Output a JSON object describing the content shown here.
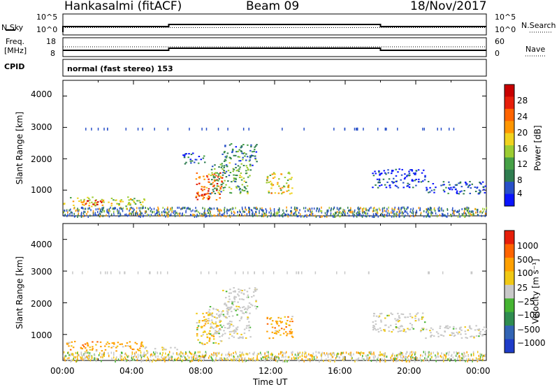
{
  "header": {
    "station": "Hankasalmi (fitACF)",
    "beam": "Beam 09",
    "date": "18/Nov/2017"
  },
  "noise_panel": {
    "left_label": "N.Sky",
    "left_ticks": [
      "10^5",
      "10^0"
    ],
    "right_label": "N.Search",
    "right_ticks": [
      "10^5",
      "10^0"
    ]
  },
  "freq_panel": {
    "left_label_line1": "Freq.",
    "left_label_line2": "[MHz]",
    "left_ticks": [
      "18",
      "8"
    ],
    "right_label": "Nave",
    "right_ticks": [
      "60",
      "0"
    ]
  },
  "cpid": {
    "label": "CPID",
    "value": "normal (fast stereo) 153"
  },
  "chart_data": [
    {
      "type": "heatmap",
      "name": "power",
      "ylabel": "Slant Range [km]",
      "yticks": [
        "4000",
        "3000",
        "2000",
        "1000"
      ],
      "ylim": [
        180,
        4500
      ],
      "xlim_hours": [
        0,
        24
      ],
      "colorbar_label": "Power [dB]",
      "colorbar_ticks": [
        "28",
        "24",
        "20",
        "16",
        "12",
        "8",
        "4"
      ],
      "colorbar_colors": [
        "#0a14ff",
        "#2850c8",
        "#2f7d50",
        "#46a046",
        "#9ccc32",
        "#f0d21e",
        "#ff9600",
        "#ff6400",
        "#e61e0a",
        "#c80000"
      ],
      "regions": [
        {
          "t0": 0.0,
          "t1": 4.6,
          "r0": 500,
          "r1": 800,
          "level": 0.5
        },
        {
          "t0": 1.0,
          "t1": 2.2,
          "r0": 560,
          "r1": 700,
          "level": 0.9
        },
        {
          "t0": 7.5,
          "t1": 9.0,
          "r0": 700,
          "r1": 1600,
          "level": 0.75
        },
        {
          "t0": 7.8,
          "t1": 8.3,
          "r0": 750,
          "r1": 1050,
          "level": 0.95
        },
        {
          "t0": 8.3,
          "t1": 10.6,
          "r0": 900,
          "r1": 1900,
          "level": 0.35
        },
        {
          "t0": 9.0,
          "t1": 11.0,
          "r0": 1800,
          "r1": 2500,
          "level": 0.25
        },
        {
          "t0": 11.5,
          "t1": 13.0,
          "r0": 900,
          "r1": 1600,
          "level": 0.55
        },
        {
          "t0": 6.7,
          "t1": 8.0,
          "r0": 1850,
          "r1": 2200,
          "level": 0.15
        },
        {
          "t0": 17.5,
          "t1": 20.5,
          "r0": 1100,
          "r1": 1700,
          "level": 0.1
        },
        {
          "t0": 20.5,
          "t1": 24.0,
          "r0": 900,
          "r1": 1300,
          "level": 0.15
        }
      ]
    },
    {
      "type": "heatmap",
      "name": "velocity",
      "ylabel": "Slant Range [km]",
      "yticks": [
        "4000",
        "3000",
        "2000",
        "1000"
      ],
      "ylim": [
        180,
        4500
      ],
      "xlim_hours": [
        0,
        24
      ],
      "xticks": [
        "00:00",
        "04:00",
        "08:00",
        "12:00",
        "16:00",
        "20:00",
        "00:00"
      ],
      "xlabel": "Time UT",
      "colorbar_label": "Velocity [m s⁻¹]",
      "colorbar_ticks": [
        "1000",
        "500",
        "100",
        "25",
        "−25",
        "−100",
        "−500",
        "−1000"
      ],
      "colorbar_colors": [
        "#1e3cc8",
        "#3264b4",
        "#2f8c50",
        "#46b432",
        "#c8c8c8",
        "#f0c814",
        "#ffa000",
        "#ff6400",
        "#e61e0a"
      ],
      "regions": [
        {
          "t0": 0.0,
          "t1": 4.6,
          "r0": 500,
          "r1": 800,
          "color": "#ffa000"
        },
        {
          "t0": 4.6,
          "t1": 6.5,
          "r0": 500,
          "r1": 620,
          "color": "#c8c8c8"
        },
        {
          "t0": 7.5,
          "t1": 9.0,
          "r0": 700,
          "r1": 1700,
          "color": "#f0c814"
        },
        {
          "t0": 8.2,
          "t1": 10.6,
          "r0": 900,
          "r1": 1900,
          "color": "#c8c8c8"
        },
        {
          "t0": 9.0,
          "t1": 11.0,
          "r0": 1800,
          "r1": 2500,
          "color": "#c8c8c8"
        },
        {
          "t0": 11.5,
          "t1": 13.0,
          "r0": 900,
          "r1": 1600,
          "color": "#ffa000"
        },
        {
          "t0": 17.5,
          "t1": 20.5,
          "r0": 1100,
          "r1": 1700,
          "color": "#c8c8c8"
        },
        {
          "t0": 20.5,
          "t1": 24.0,
          "r0": 900,
          "r1": 1300,
          "color": "#c8c8c8"
        }
      ]
    }
  ]
}
